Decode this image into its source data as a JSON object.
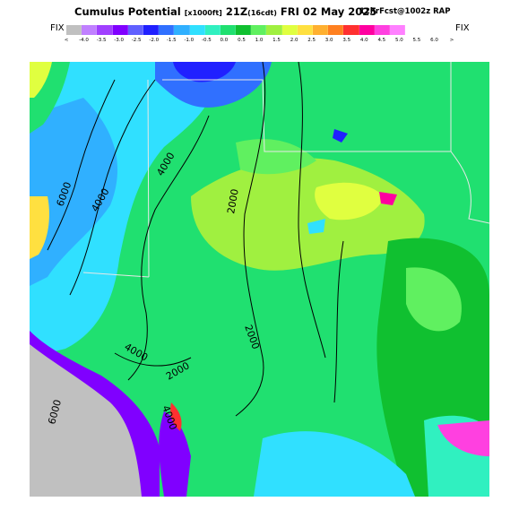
{
  "title": {
    "main_prefix": "Cumulus Potential",
    "units": "[x1000ft]",
    "valid": "21Z",
    "valid_local": "(16cdt)",
    "date": "FRI 02 May 2025",
    "right": "12hrFcst@1002z RAP"
  },
  "fix_left": "FIX",
  "fix_right": "FIX",
  "scale": {
    "colors": [
      "#c0c0c0",
      "#c080ff",
      "#a040ff",
      "#8000ff",
      "#6060ff",
      "#2020ff",
      "#3070ff",
      "#30b0ff",
      "#30e0ff",
      "#30f0c0",
      "#20e070",
      "#10c030",
      "#60f060",
      "#a0f040",
      "#e0ff40",
      "#ffe040",
      "#ffb030",
      "#ff8020",
      "#ff3030",
      "#ff00a0",
      "#ff40e0",
      "#ff80ff"
    ],
    "labels": [
      "<",
      "-4.0",
      "-3.5",
      "-3.0",
      "-2.5",
      "-2.0",
      "-1.5",
      "-1.0",
      "-0.5",
      "0.0",
      "0.5",
      "1.0",
      "1.5",
      "2.0",
      "2.5",
      "3.0",
      "3.5",
      "4.0",
      "4.5",
      "5.0",
      "5.5",
      "6.0",
      ">"
    ]
  },
  "map_labels": {
    "c1": "6000",
    "c2": "4000",
    "c3": "4000",
    "c4": "2000",
    "c5": "2000",
    "c6": "4000",
    "c7": "2000",
    "c8": "6000",
    "c9": "4000"
  }
}
